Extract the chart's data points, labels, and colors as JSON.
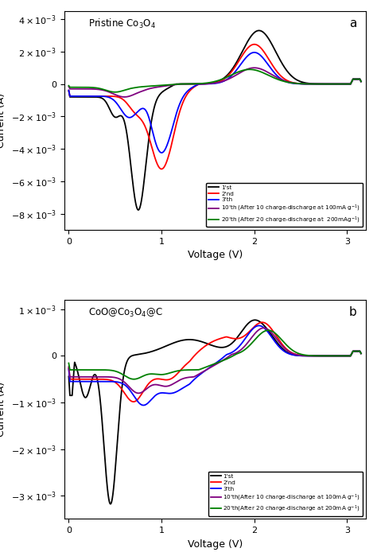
{
  "panel_a": {
    "title": "Pristine Co$_3$O$_4$",
    "label": "a",
    "ylim": [
      -0.009,
      0.0045
    ],
    "yticks": [
      -0.008,
      -0.006,
      -0.004,
      -0.002,
      0,
      0.002,
      0.004
    ],
    "xlim": [
      -0.05,
      3.2
    ],
    "xticks": [
      0,
      1,
      2,
      3
    ],
    "legend_entries": [
      "1'st",
      "2'nd",
      "3'th",
      "10'th (After 10 charge-discharge at 100mA g$^{-1}$)",
      "20'th (After 20 charge-discharge at  200mAg$^{-1}$)"
    ],
    "colors": [
      "black",
      "red",
      "blue",
      "purple",
      "green"
    ]
  },
  "panel_b": {
    "title": "CoO@Co$_3$O$_4$@C",
    "label": "b",
    "ylim": [
      -0.0035,
      0.0012
    ],
    "yticks": [
      -0.003,
      -0.002,
      -0.001,
      0,
      0.001
    ],
    "xlim": [
      -0.05,
      3.2
    ],
    "xticks": [
      0,
      1,
      2,
      3
    ],
    "legend_entries": [
      "1'st",
      "2'nd",
      "3'th",
      "10'th(After 10 charge-discharge at 100mA g$^{-1}$)",
      "20'th(After 20 charge-discharge at 200mA g$^{-1}$)"
    ],
    "colors": [
      "black",
      "red",
      "blue",
      "purple",
      "green"
    ]
  }
}
